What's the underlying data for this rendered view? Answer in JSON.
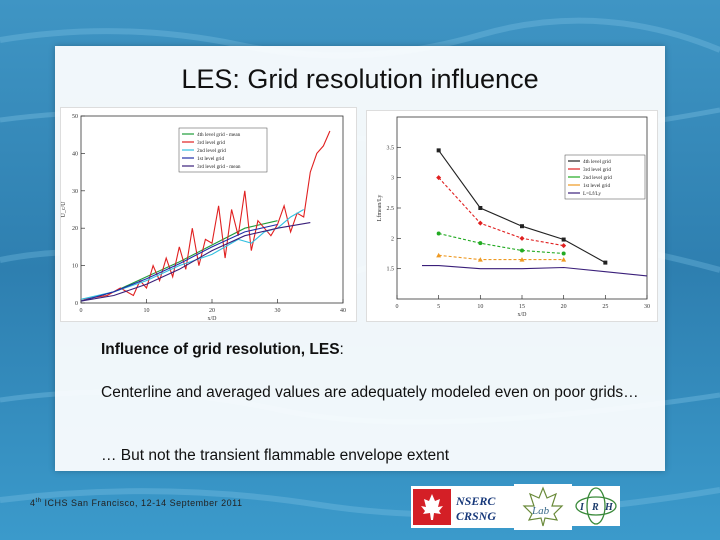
{
  "slide": {
    "title": "LES: Grid resolution influence",
    "line1_bold": "Influence of grid resolution, LES",
    "line1_rest": ":",
    "line2": "Centerline and averaged values are adequately modeled even on poor grids…",
    "line3": "… But not the transient flammable envelope extent",
    "footer_ordinal": "4",
    "footer_sup": "th",
    "footer_rest": " ICHS  San Francisco, 12-14 September 2011"
  },
  "logos": {
    "nserc_line1": "NSERC",
    "nserc_line2": "CRSNG",
    "lab_text": "Lab",
    "irh_i": "I",
    "irh_r": "R",
    "irh_h": "H"
  },
  "colors": {
    "title": "#111111",
    "ocean": "#2f86b8",
    "nserc_red": "#d41f26",
    "nserc_blue": "#17387a",
    "irh_green": "#3a8a3a"
  },
  "chart_data": [
    {
      "type": "line",
      "xlabel": "x/D",
      "ylabel": "U_c/U",
      "xlim": [
        0,
        40
      ],
      "ylim": [
        0,
        50
      ],
      "xticks": [
        0,
        10,
        20,
        30,
        40
      ],
      "yticks": [
        0,
        10,
        20,
        30,
        40,
        50
      ],
      "legend_position": "top-left",
      "series": [
        {
          "name": "4th level grid - mean",
          "color": "#1f9c3a",
          "x": [
            0,
            5,
            10,
            15,
            20,
            25,
            30
          ],
          "y": [
            0.5,
            3,
            7,
            11,
            15.5,
            20,
            22
          ]
        },
        {
          "name": "3rd level grid",
          "color": "#e02020",
          "x": [
            0,
            2,
            4,
            6,
            8,
            9,
            10,
            11,
            12,
            13,
            14,
            15,
            16,
            17,
            18,
            19,
            20,
            21,
            22,
            23,
            24,
            25,
            26,
            27,
            28,
            29,
            30,
            31,
            32,
            33,
            34,
            35,
            36,
            37,
            38
          ],
          "y": [
            1,
            1.5,
            2,
            4,
            2,
            6,
            4,
            10,
            6,
            12,
            7,
            15,
            9,
            20,
            10,
            17,
            16,
            26,
            12,
            25,
            18,
            30,
            14,
            22,
            20,
            18,
            21,
            26,
            19,
            24,
            23,
            35,
            40,
            42,
            46
          ]
        },
        {
          "name": "2nd level grid",
          "color": "#33c0e0",
          "x": [
            0,
            5,
            10,
            15,
            20,
            22,
            24,
            26,
            28,
            30,
            32,
            34
          ],
          "y": [
            1,
            3,
            6,
            10,
            13,
            15,
            17,
            16,
            19,
            20,
            23,
            25
          ]
        },
        {
          "name": "1st level grid",
          "color": "#1f2fa8",
          "x": [
            0,
            5,
            10,
            15,
            20,
            25,
            30
          ],
          "y": [
            0.5,
            3,
            6.5,
            10.5,
            15,
            19,
            21
          ]
        },
        {
          "name": "3rd level grid - mean",
          "color": "#3a1f7a",
          "x": [
            0,
            5,
            10,
            15,
            20,
            25,
            30,
            35
          ],
          "y": [
            0.5,
            2,
            5,
            9,
            14,
            18,
            20,
            21.5
          ]
        }
      ]
    },
    {
      "type": "line",
      "xlabel": "x/D",
      "ylabel": "Lfmean/Ly",
      "xlim": [
        0,
        30
      ],
      "ylim": [
        1,
        4
      ],
      "xticks": [
        0,
        5,
        10,
        15,
        20,
        25,
        30
      ],
      "yticks": [
        1.5,
        2,
        2.5,
        3,
        3.5
      ],
      "legend_position": "top-right",
      "series": [
        {
          "name": "4th level grid",
          "color": "#222222",
          "marker": "square",
          "x": [
            5,
            10,
            15,
            20,
            25
          ],
          "y": [
            3.45,
            2.5,
            2.2,
            1.98,
            1.6
          ]
        },
        {
          "name": "3rd level grid",
          "color": "#e02020",
          "marker": "diamond",
          "x": [
            5,
            10,
            15,
            20
          ],
          "y": [
            3.0,
            2.25,
            2.0,
            1.88
          ]
        },
        {
          "name": "2nd level grid",
          "color": "#22aa22",
          "marker": "circle",
          "x": [
            5,
            10,
            15,
            20
          ],
          "y": [
            2.08,
            1.92,
            1.8,
            1.75
          ]
        },
        {
          "name": "1st level grid",
          "color": "#ee9922",
          "marker": "triangle",
          "x": [
            5,
            10,
            15,
            20
          ],
          "y": [
            1.72,
            1.65,
            1.65,
            1.65
          ]
        },
        {
          "name": "L=Lf/Ly",
          "color": "#3a1f7a",
          "marker": "none",
          "x": [
            3,
            5,
            10,
            15,
            20,
            25,
            30
          ],
          "y": [
            1.55,
            1.55,
            1.5,
            1.5,
            1.52,
            1.45,
            1.38
          ]
        }
      ]
    }
  ]
}
